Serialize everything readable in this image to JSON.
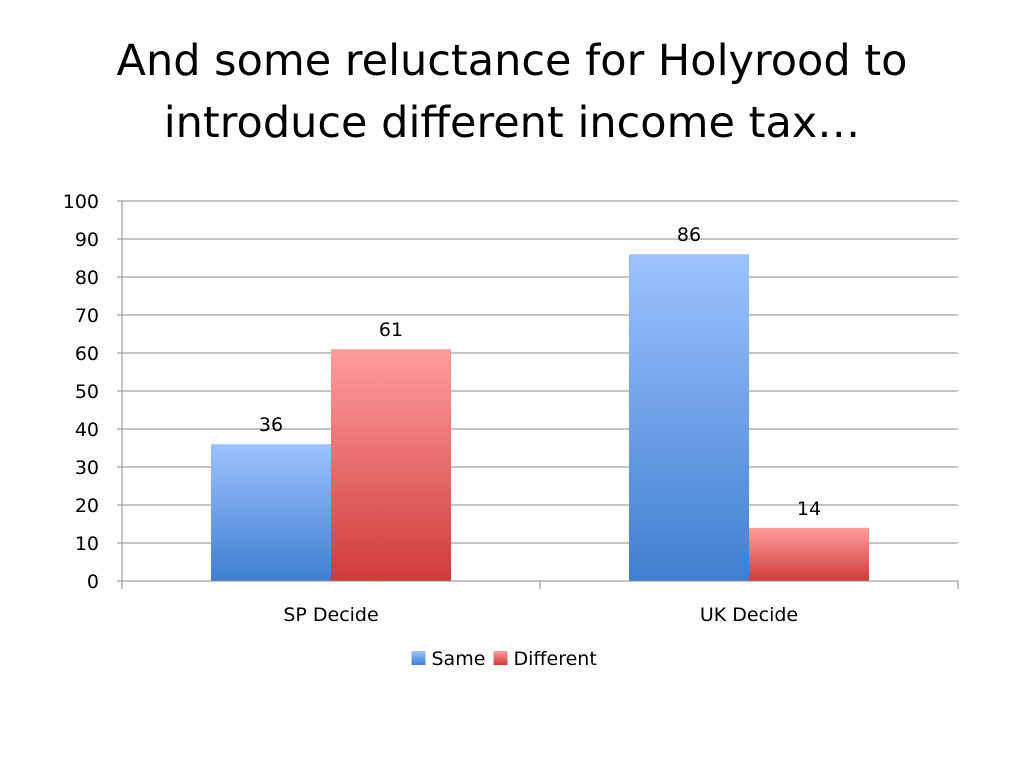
{
  "slide": {
    "title": "And some reluctance for Holyrood to introduce different income tax…"
  },
  "chart_data": {
    "type": "bar",
    "title": "",
    "xlabel": "",
    "ylabel": "",
    "categories": [
      "SP Decide",
      "UK Decide"
    ],
    "series": [
      {
        "name": "Same",
        "values": [
          36,
          86
        ],
        "color_top": "#9ec2ff",
        "color_bottom": "#3f7fd0"
      },
      {
        "name": "Different",
        "values": [
          61,
          14
        ],
        "color_top": "#ff9d9d",
        "color_bottom": "#cf3c3a"
      }
    ],
    "ylim": [
      0,
      100
    ],
    "yticks": [
      0,
      10,
      20,
      30,
      40,
      50,
      60,
      70,
      80,
      90,
      100
    ],
    "data_labels": true,
    "grid": true,
    "legend": "bottom"
  }
}
